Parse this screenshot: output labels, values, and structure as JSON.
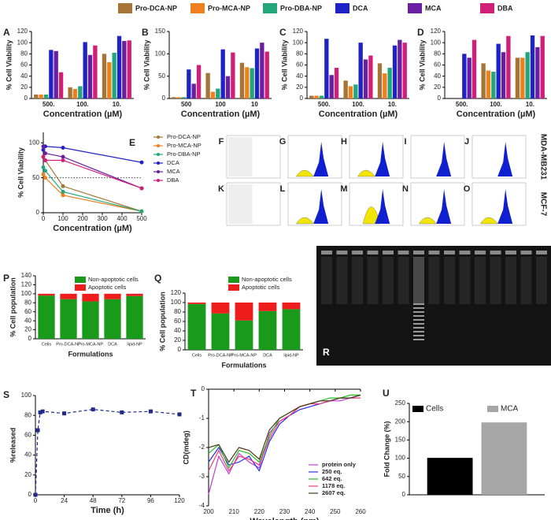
{
  "legend": [
    {
      "name": "Pro-DCA-NP",
      "color": "#a57436"
    },
    {
      "name": "Pro-MCA-NP",
      "color": "#f07f1e"
    },
    {
      "name": "Pro-DBA-NP",
      "color": "#22a67a"
    },
    {
      "name": "DCA",
      "color": "#1f22c4"
    },
    {
      "name": "MCA",
      "color": "#6a1fa3"
    },
    {
      "name": "DBA",
      "color": "#d11f78"
    }
  ],
  "chart_data": [
    {
      "type": "bar",
      "label": "A",
      "categories": [
        "500.",
        "100.",
        "10."
      ],
      "series": [
        {
          "values": [
            7,
            20,
            80
          ]
        },
        {
          "values": [
            7,
            17,
            65
          ]
        },
        {
          "values": [
            7,
            22,
            82
          ]
        },
        {
          "values": [
            87,
            101,
            112
          ]
        },
        {
          "values": [
            85,
            78,
            103
          ]
        },
        {
          "values": [
            47,
            95,
            104
          ]
        }
      ],
      "ylim": [
        0,
        120
      ],
      "yticks": [
        0,
        20,
        40,
        60,
        80,
        100,
        120
      ],
      "ylabel": "% Cell Viability",
      "xlabel": "Concentration (µM)"
    },
    {
      "type": "bar",
      "label": "B",
      "categories": [
        "500",
        "100",
        "10"
      ],
      "series": [
        {
          "values": [
            3,
            57,
            80
          ]
        },
        {
          "values": [
            3,
            15,
            70
          ]
        },
        {
          "values": [
            3,
            22,
            68
          ]
        },
        {
          "values": [
            65,
            110,
            112
          ]
        },
        {
          "values": [
            33,
            50,
            125
          ]
        },
        {
          "values": [
            75,
            103,
            105
          ]
        }
      ],
      "ylim": [
        0,
        150
      ],
      "yticks": [
        0,
        50,
        100,
        150
      ],
      "ylabel": "% Cell Viability",
      "xlabel": "Concentration (µM)"
    },
    {
      "type": "bar",
      "label": "C",
      "categories": [
        "500.",
        "100.",
        "10."
      ],
      "series": [
        {
          "values": [
            5,
            32,
            63
          ]
        },
        {
          "values": [
            5,
            22,
            45
          ]
        },
        {
          "values": [
            5,
            25,
            55
          ]
        },
        {
          "values": [
            107,
            100,
            95
          ]
        },
        {
          "values": [
            42,
            70,
            105
          ]
        },
        {
          "values": [
            55,
            77,
            100
          ]
        }
      ],
      "ylim": [
        0,
        120
      ],
      "yticks": [
        0,
        20,
        40,
        60,
        80,
        100,
        120
      ],
      "ylabel": "% Cell Viability",
      "xlabel": "Concentration (µM)"
    },
    {
      "type": "bar",
      "label": "D",
      "categories": [
        "500.",
        "100.",
        "10."
      ],
      "series": [
        {
          "values": [
            0,
            63,
            73
          ]
        },
        {
          "values": [
            0,
            50,
            73
          ]
        },
        {
          "values": [
            0,
            48,
            83
          ]
        },
        {
          "values": [
            80,
            98,
            113
          ]
        },
        {
          "values": [
            73,
            83,
            92
          ]
        },
        {
          "values": [
            105,
            112,
            112
          ]
        }
      ],
      "ylim": [
        0,
        120
      ],
      "yticks": [
        0,
        20,
        40,
        60,
        80,
        100,
        120
      ],
      "ylabel": "% Cell Viability",
      "xlabel": "Concentration (µM)"
    },
    {
      "type": "line",
      "label": "E",
      "markers": "circle",
      "x": [
        0,
        10,
        100,
        500
      ],
      "series": [
        {
          "name": "Pro-DCA-NP",
          "color": "#a57436",
          "values": [
            80,
            75,
            38,
            2
          ]
        },
        {
          "name": "Pro-MCA-NP",
          "color": "#f07f1e",
          "values": [
            55,
            50,
            25,
            2
          ]
        },
        {
          "name": "Pro-DBA-NP",
          "color": "#22a67a",
          "values": [
            65,
            60,
            30,
            2
          ]
        },
        {
          "name": "DCA",
          "color": "#1f22c4",
          "values": [
            90,
            95,
            93,
            72
          ]
        },
        {
          "name": "MCA",
          "color": "#6a1fa3",
          "values": [
            95,
            85,
            80,
            35
          ]
        },
        {
          "name": "DBA",
          "color": "#d11f78",
          "values": [
            80,
            75,
            75,
            35
          ]
        }
      ],
      "reference_line": 50,
      "xlim": [
        0,
        500
      ],
      "xticks": [
        0,
        100,
        200,
        300,
        400,
        500
      ],
      "ylim": [
        0,
        115
      ],
      "yticks": [
        0,
        50,
        100
      ],
      "ylabel": "% Cell Viability",
      "xlabel": "Concentration (µM)"
    },
    {
      "type": "stacked_bar",
      "label": "P",
      "categories": [
        "Cells",
        "Pro-DCA-NP",
        "Pro-MCA-NP",
        "DCA",
        "lipid-NP"
      ],
      "series": [
        {
          "name": "Non-apoptotic cells",
          "color": "#1a9a1a",
          "values": [
            96,
            88,
            83,
            88,
            95
          ]
        },
        {
          "name": "Apoptotic cells",
          "color": "#ee1c1c",
          "values": [
            4,
            12,
            17,
            12,
            5
          ]
        }
      ],
      "ylim": [
        0,
        140
      ],
      "yticks": [
        0,
        20,
        40,
        60,
        80,
        100,
        120,
        140
      ],
      "ylabel": "% Cell population",
      "xlabel": "Formulations"
    },
    {
      "type": "stacked_bar",
      "label": "Q",
      "categories": [
        "Cells",
        "Pro-DCA-NP",
        "Pro-MCA-NP",
        "DCA",
        "lipid-NP"
      ],
      "series": [
        {
          "name": "Non-apoptotic cells",
          "color": "#1a9a1a",
          "values": [
            97,
            77,
            62,
            82,
            86
          ]
        },
        {
          "name": "Apoptotic cells",
          "color": "#ee1c1c",
          "values": [
            3,
            23,
            38,
            18,
            14
          ]
        }
      ],
      "ylim": [
        0,
        120
      ],
      "yticks": [
        0,
        20,
        40,
        60,
        80,
        100,
        120
      ],
      "ylabel": "% Cell population",
      "xlabel": "Formulations"
    },
    {
      "type": "line",
      "label": "S",
      "markers": "square",
      "line_style": "dashed",
      "x": [
        0,
        2,
        4,
        6,
        24,
        48,
        72,
        96,
        120
      ],
      "series": [
        {
          "color": "#1f2a8a",
          "values": [
            0,
            65,
            83,
            84,
            82,
            86,
            83,
            84,
            81
          ]
        }
      ],
      "xlim": [
        0,
        120
      ],
      "xticks": [
        0,
        24,
        48,
        72,
        96,
        120
      ],
      "ylim": [
        0,
        100
      ],
      "yticks": [
        0,
        20,
        40,
        60,
        80,
        100
      ],
      "ylabel": "%released",
      "xlabel": "Time (h)"
    },
    {
      "type": "line",
      "label": "T",
      "x": [
        200,
        204,
        208,
        212,
        216,
        220,
        224,
        228,
        232,
        236,
        240,
        244,
        248,
        252,
        256,
        260
      ],
      "series": [
        {
          "name": "protein only",
          "color": "#c23fd6",
          "values": [
            -3.6,
            -2.3,
            -2.9,
            -2.2,
            -2.5,
            -2.7,
            -1.5,
            -1.1,
            -0.9,
            -0.6,
            -0.5,
            -0.4,
            -0.4,
            -0.4,
            -0.3,
            -0.2
          ]
        },
        {
          "name": "250 eq.",
          "color": "#2a2ef0",
          "values": [
            -2.5,
            -2.0,
            -2.6,
            -2.5,
            -2.3,
            -2.8,
            -1.8,
            -1.2,
            -0.9,
            -0.7,
            -0.6,
            -0.5,
            -0.4,
            -0.3,
            -0.3,
            -0.2
          ]
        },
        {
          "name": "642 eq.",
          "color": "#22c022",
          "values": [
            -2.2,
            -1.9,
            -2.7,
            -2.1,
            -2.2,
            -2.5,
            -1.6,
            -1.0,
            -0.8,
            -0.6,
            -0.5,
            -0.4,
            -0.3,
            -0.3,
            -0.2,
            -0.2
          ]
        },
        {
          "name": "1178 eq.",
          "color": "#ee3c7a",
          "values": [
            -2.8,
            -2.1,
            -2.8,
            -2.3,
            -2.4,
            -2.6,
            -1.7,
            -1.1,
            -0.9,
            -0.6,
            -0.5,
            -0.5,
            -0.4,
            -0.3,
            -0.3,
            -0.3
          ]
        },
        {
          "name": "2607 eq.",
          "color": "#4d3a1c",
          "values": [
            -2.0,
            -1.9,
            -2.5,
            -2.0,
            -2.1,
            -2.4,
            -1.4,
            -1.0,
            -0.8,
            -0.6,
            -0.5,
            -0.4,
            -0.4,
            -0.3,
            -0.3,
            -0.2
          ]
        }
      ],
      "xlim": [
        200,
        260
      ],
      "xticks": [
        200,
        210,
        220,
        230,
        240,
        250,
        260
      ],
      "ylim": [
        -4,
        0
      ],
      "yticks": [
        0,
        -1,
        -2,
        -3,
        -4
      ],
      "ylabel": "CD(mdeg)",
      "xlabel": "Wavelength (nm)"
    },
    {
      "type": "bar",
      "label": "U",
      "categories": [
        null
      ],
      "series": [
        {
          "name": "Cells",
          "color": "#000000",
          "values": [
            101
          ]
        },
        {
          "name": "MCA",
          "color": "#a6a6a6",
          "values": [
            198
          ]
        }
      ],
      "ylim": [
        0,
        250
      ],
      "yticks": [
        0,
        50,
        100,
        150,
        200,
        250
      ],
      "ylabel": "Fold Change (%)"
    }
  ],
  "flow": {
    "panels": [
      "F",
      "G",
      "H",
      "I",
      "J",
      "K",
      "L",
      "M",
      "N",
      "O"
    ],
    "cell_lines": [
      "MDA-MB231",
      "MCF-7"
    ]
  },
  "gel": {
    "label": "R"
  }
}
